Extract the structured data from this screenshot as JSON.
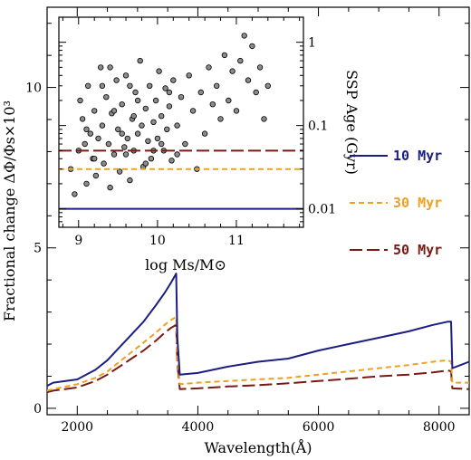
{
  "chart_data": [
    {
      "type": "line",
      "xlabel": "Wavelength(Å)",
      "ylabel": "Fractional change ΔΦ/Φs×10³",
      "xlim": [
        1500,
        8500
      ],
      "ylim": [
        -0.2,
        12.5
      ],
      "x_ticks": [
        2000,
        4000,
        6000,
        8000
      ],
      "y_ticks": [
        0,
        5,
        10
      ],
      "colors": {
        "10 Myr": "#1a1f80",
        "30 Myr": "#f0a020",
        "50 Myr": "#7a1a12"
      },
      "series": [
        {
          "name": "10 Myr",
          "style": "solid",
          "x": [
            1500,
            1600,
            2000,
            2300,
            2500,
            2700,
            2900,
            3100,
            3300,
            3450,
            3550,
            3640,
            3660,
            3700,
            4000,
            4500,
            5000,
            5500,
            6000,
            6500,
            7000,
            7500,
            7900,
            8150,
            8200,
            8220,
            8500
          ],
          "y": [
            0.7,
            0.8,
            0.9,
            1.2,
            1.5,
            1.9,
            2.3,
            2.7,
            3.2,
            3.6,
            3.9,
            4.2,
            2.2,
            1.05,
            1.1,
            1.3,
            1.45,
            1.55,
            1.8,
            2.0,
            2.2,
            2.4,
            2.6,
            2.7,
            2.7,
            1.25,
            1.45
          ]
        },
        {
          "name": "30 Myr",
          "style": "dashed",
          "x": [
            1500,
            1600,
            2000,
            2300,
            2500,
            2700,
            2900,
            3100,
            3300,
            3450,
            3550,
            3640,
            3660,
            3700,
            4000,
            4500,
            5000,
            5500,
            6000,
            6500,
            7000,
            7500,
            7900,
            8150,
            8200,
            8220,
            8500
          ],
          "y": [
            0.55,
            0.6,
            0.75,
            0.95,
            1.15,
            1.45,
            1.75,
            2.05,
            2.35,
            2.6,
            2.75,
            2.85,
            1.6,
            0.75,
            0.8,
            0.85,
            0.9,
            0.95,
            1.05,
            1.15,
            1.25,
            1.35,
            1.45,
            1.5,
            1.45,
            0.8,
            0.8
          ]
        },
        {
          "name": "50 Myr",
          "style": "long-dashed",
          "x": [
            1500,
            1600,
            2000,
            2300,
            2500,
            2700,
            2900,
            3100,
            3300,
            3450,
            3550,
            3640,
            3660,
            3700,
            4000,
            4500,
            5000,
            5500,
            6000,
            6500,
            7000,
            7500,
            7900,
            8150,
            8200,
            8220,
            8500
          ],
          "y": [
            0.5,
            0.55,
            0.65,
            0.85,
            1.05,
            1.3,
            1.55,
            1.8,
            2.1,
            2.35,
            2.5,
            2.6,
            1.4,
            0.6,
            0.62,
            0.68,
            0.72,
            0.78,
            0.85,
            0.92,
            1.0,
            1.05,
            1.12,
            1.18,
            1.15,
            0.62,
            0.6
          ]
        }
      ]
    },
    {
      "type": "scatter",
      "xlabel": "log Ms/M⊙",
      "ylabel": "SSP Age (Gyr)",
      "xlim": [
        8.75,
        11.85
      ],
      "ylim": [
        0.006,
        2.0
      ],
      "y_scale": "log",
      "x_ticks": [
        9,
        10,
        11
      ],
      "y_ticks": [
        0.01,
        0.1,
        1
      ],
      "y_tick_labels": [
        "0.01",
        "0.1",
        "1"
      ],
      "reference_lines": [
        {
          "name": "10 Myr",
          "y": 0.01,
          "style": "solid"
        },
        {
          "name": "30 Myr",
          "y": 0.03,
          "style": "dashed"
        },
        {
          "name": "50 Myr",
          "y": 0.05,
          "style": "long-dashed"
        }
      ],
      "points": [
        [
          8.9,
          0.03
        ],
        [
          8.95,
          0.015
        ],
        [
          9.0,
          0.05
        ],
        [
          9.02,
          0.2
        ],
        [
          9.05,
          0.12
        ],
        [
          9.08,
          0.06
        ],
        [
          9.1,
          0.02
        ],
        [
          9.12,
          0.3
        ],
        [
          9.15,
          0.08
        ],
        [
          9.18,
          0.04
        ],
        [
          9.2,
          0.15
        ],
        [
          9.22,
          0.025
        ],
        [
          9.25,
          0.07
        ],
        [
          9.28,
          0.5
        ],
        [
          9.3,
          0.1
        ],
        [
          9.32,
          0.035
        ],
        [
          9.35,
          0.22
        ],
        [
          9.38,
          0.06
        ],
        [
          9.4,
          0.018
        ],
        [
          9.42,
          0.14
        ],
        [
          9.45,
          0.045
        ],
        [
          9.48,
          0.35
        ],
        [
          9.5,
          0.09
        ],
        [
          9.52,
          0.028
        ],
        [
          9.55,
          0.18
        ],
        [
          9.58,
          0.055
        ],
        [
          9.6,
          0.4
        ],
        [
          9.62,
          0.07
        ],
        [
          9.65,
          0.022
        ],
        [
          9.68,
          0.12
        ],
        [
          9.7,
          0.05
        ],
        [
          9.72,
          0.25
        ],
        [
          9.75,
          0.08
        ],
        [
          9.78,
          0.6
        ],
        [
          9.8,
          0.1
        ],
        [
          9.82,
          0.032
        ],
        [
          9.85,
          0.16
        ],
        [
          9.88,
          0.065
        ],
        [
          9.9,
          0.3
        ],
        [
          9.92,
          0.04
        ],
        [
          9.95,
          0.11
        ],
        [
          9.98,
          0.2
        ],
        [
          10.0,
          0.07
        ],
        [
          10.02,
          0.45
        ],
        [
          10.05,
          0.13
        ],
        [
          10.08,
          0.05
        ],
        [
          10.1,
          0.28
        ],
        [
          10.12,
          0.09
        ],
        [
          10.15,
          0.17
        ],
        [
          10.18,
          0.038
        ],
        [
          10.2,
          0.35
        ],
        [
          10.25,
          0.1
        ],
        [
          10.3,
          0.22
        ],
        [
          10.35,
          0.06
        ],
        [
          10.4,
          0.4
        ],
        [
          10.45,
          0.15
        ],
        [
          10.5,
          0.03
        ],
        [
          10.55,
          0.25
        ],
        [
          10.6,
          0.08
        ],
        [
          10.65,
          0.5
        ],
        [
          10.7,
          0.18
        ],
        [
          10.75,
          0.3
        ],
        [
          10.8,
          0.12
        ],
        [
          10.85,
          0.7
        ],
        [
          10.9,
          0.2
        ],
        [
          10.95,
          0.45
        ],
        [
          11.0,
          0.15
        ],
        [
          11.05,
          0.6
        ],
        [
          11.1,
          1.2
        ],
        [
          11.15,
          0.35
        ],
        [
          11.2,
          0.9
        ],
        [
          11.25,
          0.25
        ],
        [
          11.3,
          0.5
        ],
        [
          11.35,
          0.12
        ],
        [
          11.4,
          0.3
        ],
        [
          9.6,
          0.045
        ],
        [
          9.45,
          0.15
        ],
        [
          9.3,
          0.3
        ],
        [
          9.7,
          0.13
        ],
        [
          9.85,
          0.035
        ],
        [
          10.05,
          0.06
        ],
        [
          9.55,
          0.08
        ],
        [
          9.4,
          0.5
        ],
        [
          9.75,
          0.2
        ],
        [
          9.95,
          0.05
        ],
        [
          10.15,
          0.25
        ],
        [
          9.2,
          0.04
        ],
        [
          9.65,
          0.3
        ],
        [
          10.25,
          0.045
        ],
        [
          9.1,
          0.09
        ]
      ]
    }
  ],
  "legend": [
    {
      "label": "10 Myr",
      "color": "#1a1f80",
      "style": "solid"
    },
    {
      "label": "30 Myr",
      "color": "#f0a020",
      "style": "dashed"
    },
    {
      "label": "50 Myr",
      "color": "#7a1a12",
      "style": "long-dashed"
    }
  ]
}
